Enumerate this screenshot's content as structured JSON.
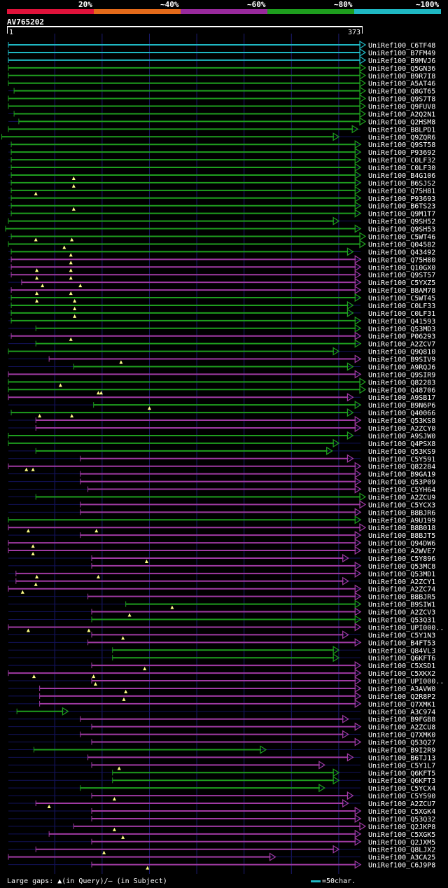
{
  "legend": [
    {
      "label": "20%",
      "color": "#e0123a"
    },
    {
      "label": "~40%",
      "color": "#e36a1a"
    },
    {
      "label": "~60%",
      "color": "#98299c"
    },
    {
      "label": "~80%",
      "color": "#1e9e1e"
    },
    {
      "label": "~100%",
      "color": "#1fb8c3"
    }
  ],
  "query": {
    "id": "AV765202",
    "start": "1",
    "end": "373"
  },
  "colors": {
    "C": "#1fb8c3",
    "G": "#1e9e1e",
    "P": "#a03aa3",
    "bg": "#000000",
    "gridline": "#1a1a6e",
    "faint": "#12125a"
  },
  "footer": {
    "text": "Large gaps: ▲(in Query)/– (in Subject)",
    "key_text": "=50char."
  },
  "chart_data": {
    "type": "alignment-overview",
    "query_length": 373,
    "hits": [
      {
        "label": "UniRef100_C6TF48",
        "start": 1,
        "end": 373,
        "color": "C",
        "tri": []
      },
      {
        "label": "UniRef100_B7FM49",
        "start": 1,
        "end": 373,
        "color": "C",
        "tri": []
      },
      {
        "label": "UniRef100_B9MVJ6",
        "start": 1,
        "end": 373,
        "color": "C",
        "tri": []
      },
      {
        "label": "UniRef100_Q5GN36",
        "start": 1,
        "end": 373,
        "color": "G",
        "tri": []
      },
      {
        "label": "UniRef100_B9R7I8",
        "start": 1,
        "end": 373,
        "color": "G",
        "tri": []
      },
      {
        "label": "UniRef100_A5AT46",
        "start": 1,
        "end": 373,
        "color": "G",
        "tri": []
      },
      {
        "label": "UniRef100_Q8GT65",
        "start": 7,
        "end": 373,
        "color": "G",
        "tri": []
      },
      {
        "label": "UniRef100_Q9S7T8",
        "start": 1,
        "end": 373,
        "color": "G",
        "tri": []
      },
      {
        "label": "UniRef100_Q9FUV8",
        "start": 1,
        "end": 373,
        "color": "G",
        "tri": []
      },
      {
        "label": "UniRef100_A2Q2N1",
        "start": 7,
        "end": 373,
        "color": "G",
        "tri": []
      },
      {
        "label": "UniRef100_Q2HSM8",
        "start": 12,
        "end": 373,
        "color": "G",
        "tri": []
      },
      {
        "label": "UniRef100_B8LPD1",
        "start": 1,
        "end": 365,
        "color": "G",
        "tri": []
      },
      {
        "label": "UniRef100_Q9ZQR6",
        "start": -6,
        "end": 345,
        "color": "G",
        "tri": []
      },
      {
        "label": "UniRef100_Q9ST58",
        "start": 4,
        "end": 368,
        "color": "G",
        "tri": []
      },
      {
        "label": "UniRef100_P93692",
        "start": 4,
        "end": 368,
        "color": "G",
        "tri": []
      },
      {
        "label": "UniRef100_C0LF32",
        "start": 4,
        "end": 368,
        "color": "G",
        "tri": []
      },
      {
        "label": "UniRef100_C0LF30",
        "start": 4,
        "end": 368,
        "color": "G",
        "tri": []
      },
      {
        "label": "UniRef100_B4G106",
        "start": 4,
        "end": 368,
        "color": "G",
        "tri": [
          70
        ]
      },
      {
        "label": "UniRef100_B6SJS2",
        "start": 4,
        "end": 368,
        "color": "G",
        "tri": [
          70
        ]
      },
      {
        "label": "UniRef100_Q75H81",
        "start": 4,
        "end": 368,
        "color": "G",
        "tri": [
          30
        ]
      },
      {
        "label": "UniRef100_P93693",
        "start": 4,
        "end": 368,
        "color": "G",
        "tri": []
      },
      {
        "label": "UniRef100_B6TS23",
        "start": 4,
        "end": 368,
        "color": "G",
        "tri": [
          70
        ]
      },
      {
        "label": "UniRef100_Q9M1T7",
        "start": 4,
        "end": 368,
        "color": "G",
        "tri": []
      },
      {
        "label": "UniRef100_Q9SH52",
        "start": 1,
        "end": 345,
        "color": "G",
        "tri": []
      },
      {
        "label": "UniRef100_Q9SH53",
        "start": -2,
        "end": 368,
        "color": "G",
        "tri": []
      },
      {
        "label": "UniRef100_C5WT46",
        "start": 4,
        "end": 373,
        "color": "G",
        "tri": [
          30,
          68
        ]
      },
      {
        "label": "UniRef100_Q04582",
        "start": 1,
        "end": 373,
        "color": "G",
        "tri": [
          60
        ]
      },
      {
        "label": "UniRef100_Q43492",
        "start": 4,
        "end": 360,
        "color": "G",
        "tri": [
          67
        ]
      },
      {
        "label": "UniRef100_Q75H80",
        "start": 4,
        "end": 368,
        "color": "P",
        "tri": [
          67
        ]
      },
      {
        "label": "UniRef100_Q10GX0",
        "start": 4,
        "end": 368,
        "color": "P",
        "tri": [
          31,
          67
        ]
      },
      {
        "label": "UniRef100_Q9ST57",
        "start": 4,
        "end": 368,
        "color": "P",
        "tri": [
          31,
          67
        ]
      },
      {
        "label": "UniRef100_C5YXZ5",
        "start": 15,
        "end": 368,
        "color": "P",
        "tri": [
          37,
          77
        ]
      },
      {
        "label": "UniRef100_B8AM78",
        "start": 4,
        "end": 368,
        "color": "P",
        "tri": [
          31,
          67
        ]
      },
      {
        "label": "UniRef100_C5WT45",
        "start": 4,
        "end": 368,
        "color": "G",
        "tri": [
          31,
          71
        ]
      },
      {
        "label": "UniRef100_C0LF33",
        "start": 4,
        "end": 360,
        "color": "G",
        "tri": [
          71
        ]
      },
      {
        "label": "UniRef100_C0LF31",
        "start": 4,
        "end": 360,
        "color": "G",
        "tri": [
          71
        ]
      },
      {
        "label": "UniRef100_Q41593",
        "start": 4,
        "end": 368,
        "color": "G",
        "tri": []
      },
      {
        "label": "UniRef100_Q53MD3",
        "start": 30,
        "end": 368,
        "color": "G",
        "tri": []
      },
      {
        "label": "UniRef100_P06293",
        "start": 4,
        "end": 368,
        "color": "P",
        "tri": [
          67
        ]
      },
      {
        "label": "UniRef100_A2ZCV7",
        "start": 30,
        "end": 368,
        "color": "G",
        "tri": []
      },
      {
        "label": "UniRef100_Q9Q810",
        "start": 1,
        "end": 345,
        "color": "G",
        "tri": []
      },
      {
        "label": "UniRef100_B9SIV9",
        "start": 44,
        "end": 368,
        "color": "P",
        "tri": [
          120
        ]
      },
      {
        "label": "UniRef100_A9RQJ6",
        "start": 70,
        "end": 360,
        "color": "G",
        "tri": []
      },
      {
        "label": "UniRef100_Q9SIR9",
        "start": 1,
        "end": 368,
        "color": "P",
        "tri": []
      },
      {
        "label": "UniRef100_Q82283",
        "start": 1,
        "end": 373,
        "color": "G",
        "tri": [
          56
        ]
      },
      {
        "label": "UniRef100_Q48706",
        "start": 1,
        "end": 373,
        "color": "G",
        "tri": [
          96,
          99
        ]
      },
      {
        "label": "UniRef100_A9SB17",
        "start": 1,
        "end": 360,
        "color": "P",
        "tri": []
      },
      {
        "label": "UniRef100_B9N6P6",
        "start": 91,
        "end": 368,
        "color": "G",
        "tri": [
          150
        ]
      },
      {
        "label": "UniRef100_Q40066",
        "start": 4,
        "end": 360,
        "color": "G",
        "tri": [
          34,
          68
        ]
      },
      {
        "label": "UniRef100_Q53KS8",
        "start": 30,
        "end": 368,
        "color": "P",
        "tri": []
      },
      {
        "label": "UniRef100_A2ZCY0",
        "start": 30,
        "end": 368,
        "color": "P",
        "tri": []
      },
      {
        "label": "UniRef100_A9SJW0",
        "start": 1,
        "end": 360,
        "color": "G",
        "tri": []
      },
      {
        "label": "UniRef100_Q4PSX8",
        "start": 1,
        "end": 345,
        "color": "G",
        "tri": []
      },
      {
        "label": "UniRef100_Q53KS9",
        "start": 30,
        "end": 338,
        "color": "G",
        "tri": []
      },
      {
        "label": "UniRef100_C5Y591",
        "start": 77,
        "end": 360,
        "color": "P",
        "tri": []
      },
      {
        "label": "UniRef100_Q82284",
        "start": 1,
        "end": 368,
        "color": "P",
        "tri": [
          20,
          27
        ]
      },
      {
        "label": "UniRef100_B9GA19",
        "start": 77,
        "end": 368,
        "color": "P",
        "tri": []
      },
      {
        "label": "UniRef100_Q53P09",
        "start": 77,
        "end": 368,
        "color": "P",
        "tri": []
      },
      {
        "label": "UniRef100_C5YH64",
        "start": 85,
        "end": 368,
        "color": "P",
        "tri": []
      },
      {
        "label": "UniRef100_A2ZCU9",
        "start": 30,
        "end": 373,
        "color": "G",
        "tri": []
      },
      {
        "label": "UniRef100_C5YCX3",
        "start": 77,
        "end": 373,
        "color": "P",
        "tri": []
      },
      {
        "label": "UniRef100_B8BJR6",
        "start": 77,
        "end": 368,
        "color": "P",
        "tri": []
      },
      {
        "label": "UniRef100_A9U199",
        "start": 1,
        "end": 368,
        "color": "G",
        "tri": []
      },
      {
        "label": "UniRef100_B8B018",
        "start": 1,
        "end": 373,
        "color": "P",
        "tri": [
          22,
          94
        ]
      },
      {
        "label": "UniRef100_B8BJT5",
        "start": 77,
        "end": 368,
        "color": "P",
        "tri": []
      },
      {
        "label": "UniRef100_Q94DW6",
        "start": 1,
        "end": 368,
        "color": "P",
        "tri": [
          27
        ]
      },
      {
        "label": "UniRef100_A2WVE7",
        "start": 1,
        "end": 368,
        "color": "P",
        "tri": [
          27
        ]
      },
      {
        "label": "UniRef100_C5Y896",
        "start": 89,
        "end": 355,
        "color": "P",
        "tri": [
          147
        ]
      },
      {
        "label": "UniRef100_Q53MC8",
        "start": 89,
        "end": 368,
        "color": "P",
        "tri": []
      },
      {
        "label": "UniRef100_Q53MD1",
        "start": 9,
        "end": 368,
        "color": "P",
        "tri": [
          31,
          96
        ]
      },
      {
        "label": "UniRef100_A2ZCY1",
        "start": 9,
        "end": 355,
        "color": "P",
        "tri": [
          30
        ]
      },
      {
        "label": "UniRef100_A2ZC74",
        "start": 1,
        "end": 368,
        "color": "P",
        "tri": [
          16
        ]
      },
      {
        "label": "UniRef100_B8BJR5",
        "start": 85,
        "end": 368,
        "color": "P",
        "tri": []
      },
      {
        "label": "UniRef100_B9SIW1",
        "start": 125,
        "end": 368,
        "color": "G",
        "tri": [
          174
        ]
      },
      {
        "label": "UniRef100_A2ZCV3",
        "start": 89,
        "end": 368,
        "color": "P",
        "tri": [
          129
        ]
      },
      {
        "label": "UniRef100_Q53Q31",
        "start": 89,
        "end": 368,
        "color": "G",
        "tri": []
      },
      {
        "label": "UniRef100_UPI000..",
        "start": 1,
        "end": 368,
        "color": "P",
        "tri": [
          22,
          86
        ]
      },
      {
        "label": "UniRef100_C5Y1N3",
        "start": 89,
        "end": 355,
        "color": "P",
        "tri": [
          122
        ]
      },
      {
        "label": "UniRef100_B4FT53",
        "start": 85,
        "end": 368,
        "color": "P",
        "tri": []
      },
      {
        "label": "UniRef100_Q84VL3",
        "start": 111,
        "end": 345,
        "color": "G",
        "tri": []
      },
      {
        "label": "UniRef100_Q6KFT6",
        "start": 111,
        "end": 345,
        "color": "G",
        "tri": []
      },
      {
        "label": "UniRef100_C5XSD1",
        "start": 89,
        "end": 368,
        "color": "P",
        "tri": [
          145
        ]
      },
      {
        "label": "UniRef100_C5XKX2",
        "start": 1,
        "end": 368,
        "color": "P",
        "tri": [
          28,
          91
        ]
      },
      {
        "label": "UniRef100_UPI000..",
        "start": 89,
        "end": 368,
        "color": "P",
        "tri": [
          93
        ]
      },
      {
        "label": "UniRef100_A3AVW0",
        "start": 34,
        "end": 368,
        "color": "P",
        "tri": [
          125
        ]
      },
      {
        "label": "UniRef100_Q2R8P2",
        "start": 34,
        "end": 368,
        "color": "P",
        "tri": [
          123
        ]
      },
      {
        "label": "UniRef100_Q7XMK1",
        "start": 34,
        "end": 368,
        "color": "P",
        "tri": []
      },
      {
        "label": "UniRef100_A3C974",
        "start": 10,
        "end": 59,
        "color": "G",
        "tri": []
      },
      {
        "label": "UniRef100_B9FGB8",
        "start": 77,
        "end": 355,
        "color": "P",
        "tri": []
      },
      {
        "label": "UniRef100_A2ZCU8",
        "start": 89,
        "end": 368,
        "color": "P",
        "tri": []
      },
      {
        "label": "UniRef100_Q7XMK0",
        "start": 77,
        "end": 355,
        "color": "P",
        "tri": []
      },
      {
        "label": "UniRef100_Q53Q27",
        "start": 89,
        "end": 368,
        "color": "P",
        "tri": []
      },
      {
        "label": "UniRef100_B9I2R9",
        "start": 28,
        "end": 268,
        "color": "G",
        "tri": []
      },
      {
        "label": "UniRef100_B6TJ13",
        "start": 85,
        "end": 360,
        "color": "P",
        "tri": []
      },
      {
        "label": "UniRef100_C5Y1L7",
        "start": 89,
        "end": 330,
        "color": "P",
        "tri": [
          118
        ]
      },
      {
        "label": "UniRef100_Q6KFT5",
        "start": 111,
        "end": 345,
        "color": "G",
        "tri": []
      },
      {
        "label": "UniRef100_Q6KFT3",
        "start": 111,
        "end": 345,
        "color": "G",
        "tri": []
      },
      {
        "label": "UniRef100_C5YCX4",
        "start": 77,
        "end": 330,
        "color": "G",
        "tri": []
      },
      {
        "label": "UniRef100_C5Y590",
        "start": 89,
        "end": 360,
        "color": "P",
        "tri": [
          113
        ]
      },
      {
        "label": "UniRef100_A2ZCU7",
        "start": 30,
        "end": 355,
        "color": "P",
        "tri": [
          44
        ]
      },
      {
        "label": "UniRef100_C5XGK4",
        "start": 89,
        "end": 368,
        "color": "P",
        "tri": []
      },
      {
        "label": "UniRef100_Q53Q32",
        "start": 89,
        "end": 368,
        "color": "P",
        "tri": []
      },
      {
        "label": "UniRef100_Q2JKP8",
        "start": 70,
        "end": 373,
        "color": "P",
        "tri": [
          113
        ]
      },
      {
        "label": "UniRef100_C5XGK5",
        "start": 44,
        "end": 368,
        "color": "P",
        "tri": [
          122
        ]
      },
      {
        "label": "UniRef100_Q2JXM5",
        "start": 89,
        "end": 368,
        "color": "P",
        "tri": []
      },
      {
        "label": "UniRef100_Q8LJX2",
        "start": 30,
        "end": 345,
        "color": "P",
        "tri": [
          102
        ]
      },
      {
        "label": "UniRef100_A3CA25",
        "start": 1,
        "end": 278,
        "color": "P",
        "tri": []
      },
      {
        "label": "UniRef100_C6J9P8",
        "start": 89,
        "end": 368,
        "color": "P",
        "tri": [
          148
        ]
      }
    ]
  }
}
